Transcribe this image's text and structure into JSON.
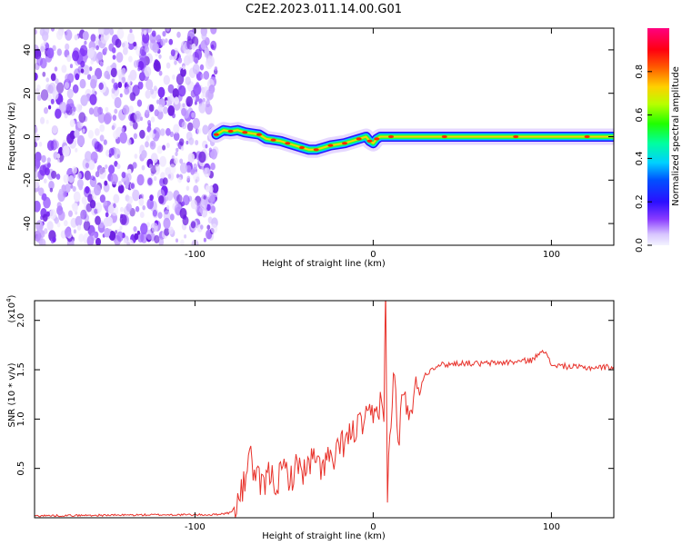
{
  "title": "C2E2.2023.011.14.00.G01",
  "chart_data": [
    {
      "type": "heatmap",
      "xlabel": "Height of straight line (km)",
      "ylabel": "Frequency (Hz)",
      "xlim": [
        -190,
        135
      ],
      "ylim": [
        -50,
        50
      ],
      "xticks": [
        -100,
        0,
        100
      ],
      "yticks": [
        -40,
        -20,
        0,
        20,
        40
      ],
      "noise_region_x": [
        -190,
        -88
      ],
      "signal_trace": [
        {
          "x": -88,
          "y": 1
        },
        {
          "x": -84,
          "y": 3
        },
        {
          "x": -80,
          "y": 2.5
        },
        {
          "x": -76,
          "y": 3
        },
        {
          "x": -72,
          "y": 2
        },
        {
          "x": -68,
          "y": 1.5
        },
        {
          "x": -64,
          "y": 1
        },
        {
          "x": -60,
          "y": -1
        },
        {
          "x": -56,
          "y": -1.5
        },
        {
          "x": -52,
          "y": -2
        },
        {
          "x": -48,
          "y": -3
        },
        {
          "x": -44,
          "y": -4
        },
        {
          "x": -40,
          "y": -5
        },
        {
          "x": -36,
          "y": -6
        },
        {
          "x": -32,
          "y": -6
        },
        {
          "x": -28,
          "y": -5
        },
        {
          "x": -24,
          "y": -4
        },
        {
          "x": -20,
          "y": -3.5
        },
        {
          "x": -16,
          "y": -3
        },
        {
          "x": -12,
          "y": -2
        },
        {
          "x": -8,
          "y": -1
        },
        {
          "x": -4,
          "y": 0
        },
        {
          "x": -2,
          "y": -2
        },
        {
          "x": 0,
          "y": -3
        },
        {
          "x": 2,
          "y": -1
        },
        {
          "x": 4,
          "y": 0
        },
        {
          "x": 10,
          "y": 0
        },
        {
          "x": 20,
          "y": 0
        },
        {
          "x": 40,
          "y": 0
        },
        {
          "x": 60,
          "y": 0
        },
        {
          "x": 80,
          "y": 0
        },
        {
          "x": 100,
          "y": 0
        },
        {
          "x": 120,
          "y": 0
        },
        {
          "x": 135,
          "y": 0
        }
      ],
      "colorbar": {
        "label": "Normalized spectral amplitude",
        "range": [
          0,
          1
        ],
        "ticks": [
          "0.0",
          "0.2",
          "0.4",
          "0.6",
          "0.8"
        ],
        "colormap": "rainbow"
      },
      "grid": false
    },
    {
      "type": "line",
      "xlabel": "Height of straight line (km)",
      "ylabel": "SNR (10 * v/v)",
      "scale_label_base": "(x10",
      "scale_label_exp": "4",
      "scale_label_end": ")",
      "xlim": [
        -190,
        135
      ],
      "ylim": [
        0,
        2.2
      ],
      "xticks": [
        -100,
        0,
        100
      ],
      "yticks": [
        "0.5",
        "1.0",
        "1.5",
        "2.0"
      ],
      "series": [
        {
          "color": "#e8322b",
          "points": [
            {
              "x": -190,
              "y": 0.02
            },
            {
              "x": -120,
              "y": 0.03
            },
            {
              "x": -90,
              "y": 0.03
            },
            {
              "x": -80,
              "y": 0.05
            },
            {
              "x": -76,
              "y": 0.15
            },
            {
              "x": -72,
              "y": 0.35
            },
            {
              "x": -70,
              "y": 0.7
            },
            {
              "x": -66,
              "y": 0.4
            },
            {
              "x": -62,
              "y": 0.3
            },
            {
              "x": -58,
              "y": 0.45
            },
            {
              "x": -54,
              "y": 0.35
            },
            {
              "x": -50,
              "y": 0.5
            },
            {
              "x": -46,
              "y": 0.4
            },
            {
              "x": -42,
              "y": 0.55
            },
            {
              "x": -38,
              "y": 0.45
            },
            {
              "x": -34,
              "y": 0.6
            },
            {
              "x": -30,
              "y": 0.5
            },
            {
              "x": -26,
              "y": 0.6
            },
            {
              "x": -22,
              "y": 0.55
            },
            {
              "x": -18,
              "y": 0.75
            },
            {
              "x": -14,
              "y": 0.8
            },
            {
              "x": -10,
              "y": 0.9
            },
            {
              "x": -6,
              "y": 0.95
            },
            {
              "x": -2,
              "y": 1.0
            },
            {
              "x": 2,
              "y": 1.05
            },
            {
              "x": 4,
              "y": 1.2
            },
            {
              "x": 6,
              "y": 1.1
            },
            {
              "x": 7,
              "y": 2.2
            },
            {
              "x": 8,
              "y": 0.3
            },
            {
              "x": 10,
              "y": 1.0
            },
            {
              "x": 12,
              "y": 1.5
            },
            {
              "x": 14,
              "y": 0.7
            },
            {
              "x": 16,
              "y": 1.2
            },
            {
              "x": 20,
              "y": 1.1
            },
            {
              "x": 24,
              "y": 1.3
            },
            {
              "x": 28,
              "y": 1.42
            },
            {
              "x": 32,
              "y": 1.5
            },
            {
              "x": 36,
              "y": 1.55
            },
            {
              "x": 40,
              "y": 1.55
            },
            {
              "x": 50,
              "y": 1.57
            },
            {
              "x": 60,
              "y": 1.56
            },
            {
              "x": 70,
              "y": 1.57
            },
            {
              "x": 80,
              "y": 1.58
            },
            {
              "x": 90,
              "y": 1.6
            },
            {
              "x": 95,
              "y": 1.72
            },
            {
              "x": 100,
              "y": 1.55
            },
            {
              "x": 110,
              "y": 1.53
            },
            {
              "x": 120,
              "y": 1.52
            },
            {
              "x": 135,
              "y": 1.53
            }
          ]
        }
      ],
      "grid": false
    }
  ]
}
